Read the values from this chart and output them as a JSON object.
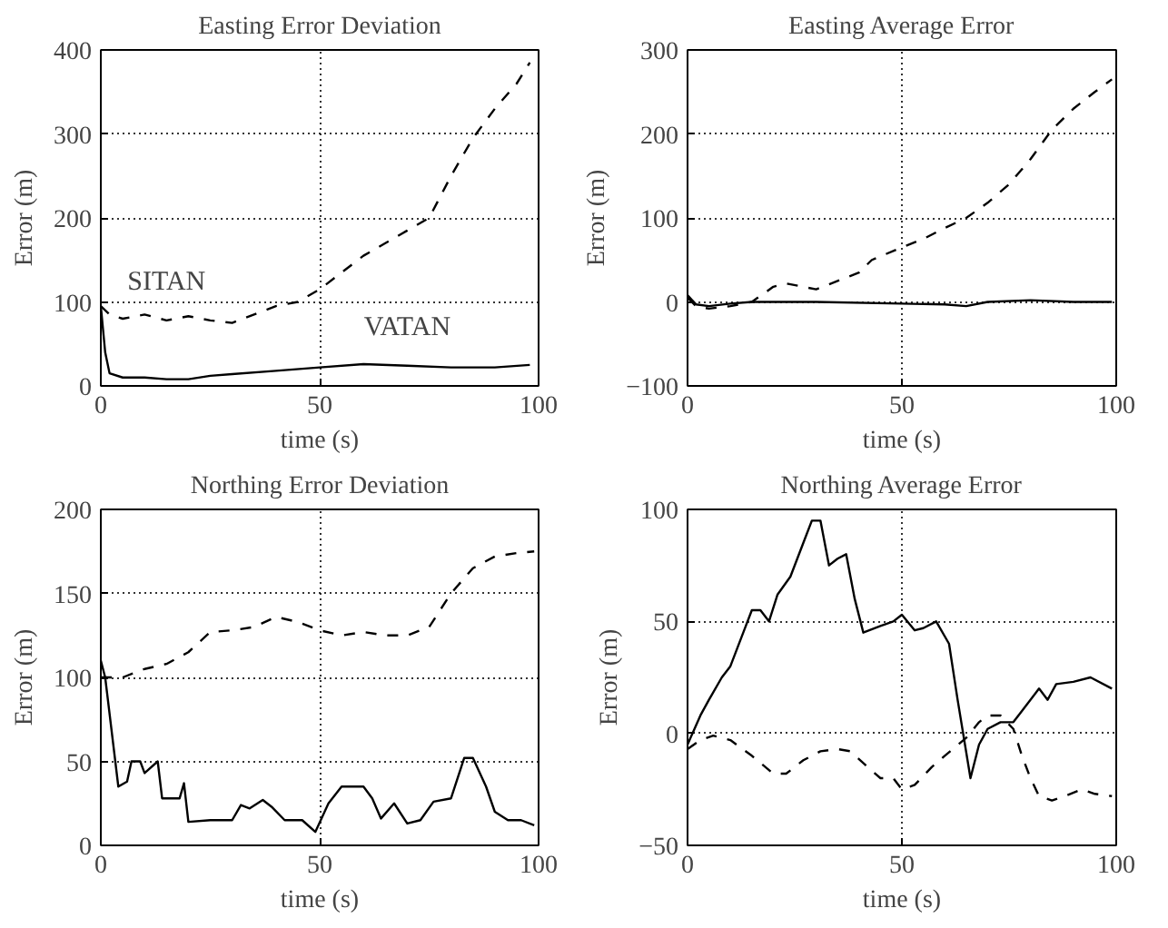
{
  "chart_data": [
    {
      "type": "line",
      "title": "Easting Error Deviation",
      "xlabel": "time (s)",
      "ylabel": "Error (m)",
      "xlim": [
        0,
        100
      ],
      "ylim": [
        0,
        400
      ],
      "xticks": [
        0,
        50,
        100
      ],
      "yticks": [
        0,
        100,
        200,
        300,
        400
      ],
      "grid": true,
      "series": [
        {
          "name": "SITAN",
          "color": "#000000",
          "line_style": "dashed",
          "x": [
            0,
            2,
            5,
            10,
            15,
            20,
            25,
            30,
            35,
            40,
            45,
            50,
            55,
            60,
            65,
            70,
            75,
            80,
            85,
            90,
            95,
            98
          ],
          "values": [
            95,
            85,
            80,
            85,
            78,
            83,
            78,
            75,
            85,
            95,
            100,
            115,
            135,
            155,
            170,
            185,
            200,
            250,
            295,
            330,
            360,
            385
          ]
        },
        {
          "name": "VATAN",
          "color": "#000000",
          "line_style": "solid",
          "x": [
            0,
            1,
            2,
            5,
            10,
            15,
            20,
            25,
            30,
            40,
            50,
            60,
            70,
            80,
            90,
            98
          ],
          "values": [
            95,
            40,
            15,
            10,
            10,
            8,
            8,
            12,
            14,
            18,
            22,
            26,
            24,
            22,
            22,
            25
          ]
        }
      ]
    },
    {
      "type": "line",
      "title": "Easting Average Error",
      "xlabel": "time (s)",
      "ylabel": "Error (m)",
      "xlim": [
        0,
        100
      ],
      "ylim": [
        -100,
        300
      ],
      "xticks": [
        0,
        50,
        100
      ],
      "yticks": [
        -100,
        0,
        100,
        200,
        300
      ],
      "grid": true,
      "series": [
        {
          "color": "#000000",
          "line_style": "dashed",
          "x": [
            0,
            2,
            5,
            10,
            15,
            20,
            23,
            27,
            30,
            35,
            40,
            43,
            50,
            55,
            60,
            65,
            70,
            75,
            80,
            85,
            90,
            95,
            99
          ],
          "values": [
            5,
            -5,
            -8,
            -5,
            0,
            18,
            22,
            18,
            15,
            25,
            35,
            50,
            65,
            75,
            88,
            100,
            118,
            140,
            170,
            205,
            230,
            250,
            265
          ]
        },
        {
          "color": "#000000",
          "line_style": "solid",
          "x": [
            0,
            2,
            5,
            10,
            15,
            30,
            50,
            60,
            65,
            70,
            80,
            90,
            99
          ],
          "values": [
            8,
            -3,
            -5,
            -2,
            0,
            0,
            -2,
            -3,
            -5,
            0,
            2,
            0,
            0
          ]
        }
      ]
    },
    {
      "type": "line",
      "title": "Northing Error Deviation",
      "xlabel": "time (s)",
      "ylabel": "Error (m)",
      "xlim": [
        0,
        100
      ],
      "ylim": [
        0,
        200
      ],
      "xticks": [
        0,
        50,
        100
      ],
      "yticks": [
        0,
        50,
        100,
        150,
        200
      ],
      "grid": true,
      "series": [
        {
          "color": "#000000",
          "line_style": "dashed",
          "x": [
            0,
            5,
            10,
            15,
            20,
            25,
            30,
            35,
            40,
            45,
            50,
            55,
            60,
            65,
            70,
            75,
            80,
            85,
            90,
            95,
            99
          ],
          "values": [
            100,
            100,
            105,
            108,
            115,
            127,
            128,
            130,
            136,
            133,
            128,
            125,
            127,
            125,
            125,
            130,
            150,
            165,
            172,
            174,
            175
          ]
        },
        {
          "color": "#000000",
          "line_style": "solid",
          "x": [
            0,
            1,
            4,
            6,
            7,
            9,
            10,
            13,
            14,
            18,
            19,
            20,
            25,
            30,
            32,
            34,
            37,
            39,
            42,
            46,
            49,
            52,
            55,
            60,
            62,
            64,
            67,
            70,
            73,
            76,
            80,
            83,
            85,
            88,
            90,
            93,
            96,
            99
          ],
          "values": [
            110,
            100,
            35,
            38,
            50,
            50,
            43,
            50,
            28,
            28,
            37,
            14,
            15,
            15,
            24,
            22,
            27,
            23,
            15,
            15,
            8,
            25,
            35,
            35,
            28,
            16,
            25,
            13,
            15,
            26,
            28,
            52,
            52,
            35,
            20,
            15,
            15,
            12
          ]
        }
      ]
    },
    {
      "type": "line",
      "title": "Northing Average Error",
      "xlabel": "time (s)",
      "ylabel": "Error (m)",
      "xlim": [
        0,
        100
      ],
      "ylim": [
        -50,
        100
      ],
      "xticks": [
        0,
        50,
        100
      ],
      "yticks": [
        -50,
        0,
        50,
        100
      ],
      "grid": true,
      "series": [
        {
          "color": "#000000",
          "line_style": "solid",
          "x": [
            0,
            3,
            5,
            8,
            10,
            13,
            15,
            17,
            19,
            21,
            24,
            27,
            29,
            31,
            33,
            35,
            37,
            39,
            41,
            45,
            48,
            50,
            53,
            55,
            58,
            61,
            63,
            66,
            68,
            70,
            73,
            76,
            78,
            82,
            84,
            86,
            90,
            94,
            99
          ],
          "values": [
            -5,
            8,
            15,
            25,
            30,
            45,
            55,
            55,
            50,
            62,
            70,
            85,
            95,
            95,
            75,
            78,
            80,
            60,
            45,
            48,
            50,
            53,
            46,
            47,
            50,
            40,
            15,
            -20,
            -5,
            2,
            5,
            5,
            10,
            20,
            15,
            22,
            23,
            25,
            20
          ]
        },
        {
          "color": "#000000",
          "line_style": "dashed",
          "x": [
            0,
            3,
            6,
            10,
            15,
            20,
            23,
            27,
            31,
            35,
            38,
            42,
            45,
            48,
            50,
            53,
            57,
            60,
            65,
            68,
            70,
            73,
            76,
            78,
            80,
            82,
            85,
            88,
            92,
            95,
            99
          ],
          "values": [
            -7,
            -3,
            -1,
            -3,
            -10,
            -18,
            -18,
            -12,
            -8,
            -7,
            -8,
            -15,
            -20,
            -20,
            -25,
            -23,
            -15,
            -10,
            -2,
            5,
            8,
            8,
            2,
            -10,
            -20,
            -28,
            -30,
            -28,
            -25,
            -27,
            -28
          ]
        }
      ]
    }
  ]
}
